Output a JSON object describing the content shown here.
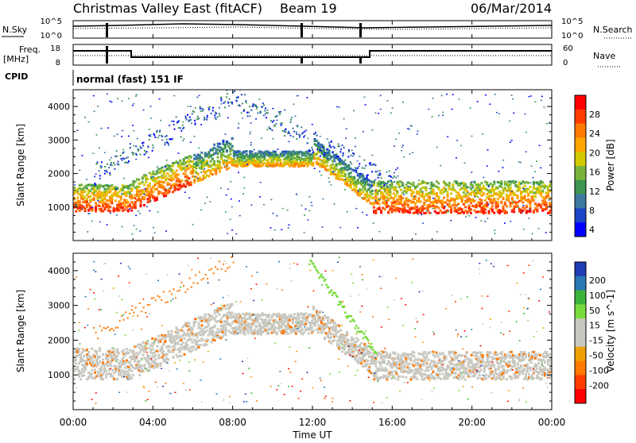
{
  "header": {
    "station": "Christmas Valley East (fitACF)",
    "beam": "Beam 19",
    "date": "06/Mar/2014"
  },
  "noise_panel": {
    "left_label": "N.Sky",
    "left_ticks": [
      "10^5",
      "10^0"
    ],
    "right_label": "N.Search",
    "right_ticks": [
      "10^5",
      "10^0"
    ]
  },
  "freq_panel": {
    "left_label_line1": "Freq.",
    "left_label_line2": "[MHz]",
    "left_ticks": [
      "18",
      "8"
    ],
    "right_label": "Nave",
    "right_ticks": [
      "60",
      "0"
    ]
  },
  "cpid_panel": {
    "label": "CPID",
    "program": "normal (fast) 151 IF"
  },
  "time_axis": {
    "label": "Time UT",
    "ticks": [
      "00:00",
      "04:00",
      "08:00",
      "12:00",
      "16:00",
      "20:00",
      "00:00"
    ]
  },
  "chart_data": [
    {
      "type": "heatmap",
      "title": "Power",
      "xlabel": "Time UT",
      "ylabel": "Slant Range [km]",
      "xlim": [
        "00:00",
        "24:00"
      ],
      "ylim": [
        0,
        4500
      ],
      "yticks": [
        1000,
        2000,
        3000,
        4000
      ],
      "colorbar": {
        "label": "Power [dB]",
        "ticks": [
          "28",
          "24",
          "20",
          "16",
          "12",
          "8",
          "4"
        ],
        "colors": [
          "#ff0000",
          "#ff3c00",
          "#ff7800",
          "#ffa500",
          "#d4c800",
          "#78b43c",
          "#3c9650",
          "#3c78a0",
          "#1e46c8",
          "#0000ff"
        ]
      },
      "features": [
        {
          "name": "near band",
          "start_range_km": 900,
          "end_range_km": 1800,
          "dominant_power_db": 28
        },
        {
          "name": "ionospheric arc",
          "peak_range_km": 4300,
          "peak_time": "08:00",
          "dominant_power_db": 10
        }
      ]
    },
    {
      "type": "heatmap",
      "title": "Velocity",
      "xlabel": "Time UT",
      "ylabel": "Slant Range [km]",
      "xlim": [
        "00:00",
        "24:00"
      ],
      "ylim": [
        0,
        4500
      ],
      "yticks": [
        1000,
        2000,
        3000,
        4000
      ],
      "colorbar": {
        "label": "Velocity [m s^-1]",
        "ticks": [
          "200",
          "100",
          "50",
          "15",
          "-15",
          "-50",
          "-100",
          "-200"
        ],
        "colors": [
          "#1e3cb4",
          "#2878b4",
          "#3cb43c",
          "#78dc3c",
          "#c8c8c0",
          "#c8c8c0",
          "#f0a000",
          "#ff7800",
          "#ff3c00",
          "#ff0000"
        ]
      },
      "features": [
        {
          "name": "ground scatter band",
          "velocity_range": [
            -15,
            15
          ]
        },
        {
          "name": "descending arc",
          "velocity_ms": 60,
          "time_range": [
            "12:00",
            "15:00"
          ]
        }
      ]
    }
  ]
}
